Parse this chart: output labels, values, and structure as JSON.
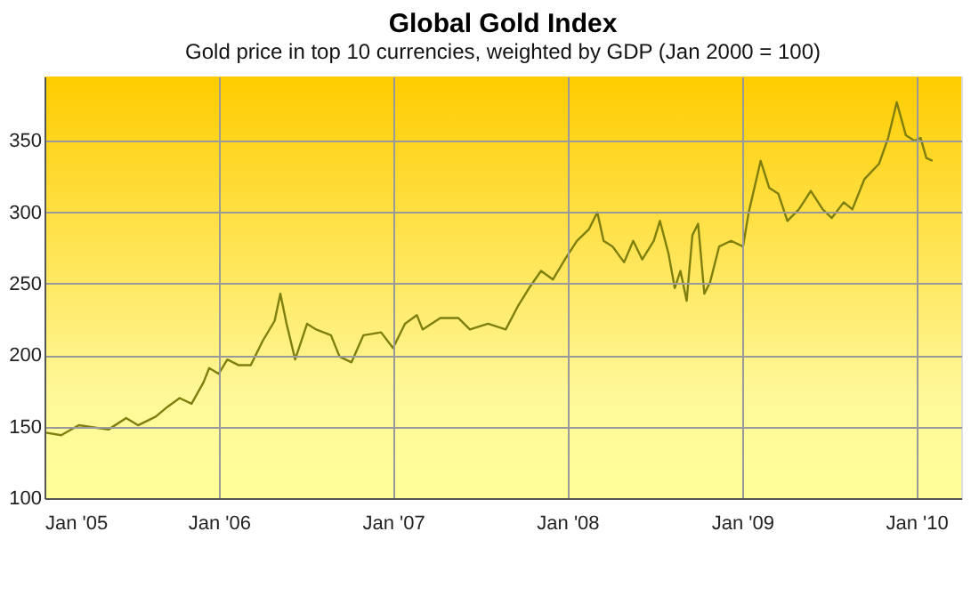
{
  "chart_data": {
    "type": "line",
    "title": "Global Gold Index",
    "subtitle": "Gold price in top 10 currencies, weighted by GDP (Jan 2000 = 100)",
    "xlim": [
      "2005-01-01",
      "2010-04-05"
    ],
    "xticks": [
      {
        "value": "2005-01",
        "label": "Jan '05"
      },
      {
        "value": "2006-01",
        "label": "Jan '06"
      },
      {
        "value": "2007-01",
        "label": "Jan '07"
      },
      {
        "value": "2008-01",
        "label": "Jan '08"
      },
      {
        "value": "2009-01",
        "label": "Jan '09"
      },
      {
        "value": "2010-01",
        "label": "Jan '10"
      }
    ],
    "ylim": [
      100,
      395
    ],
    "yticks": [
      100,
      150,
      200,
      250,
      300,
      350
    ],
    "grid": true,
    "marker": "none",
    "line_style": "solid",
    "series": [
      {
        "color": "#7f7f10",
        "x": [
          "2005-01-01",
          "2005-02-05",
          "2005-03-14",
          "2005-05-15",
          "2005-06-21",
          "2005-07-16",
          "2005-08-22",
          "2005-09-16",
          "2005-10-11",
          "2005-11-05",
          "2005-11-30",
          "2005-12-12",
          "2006-01-01",
          "2006-01-19",
          "2006-02-12",
          "2006-03-09",
          "2006-04-03",
          "2006-04-28",
          "2006-05-10",
          "2006-05-23",
          "2006-06-10",
          "2006-07-05",
          "2006-07-24",
          "2006-08-24",
          "2006-09-11",
          "2006-10-06",
          "2006-10-31",
          "2006-12-07",
          "2007-01-01",
          "2007-01-26",
          "2007-02-20",
          "2007-03-04",
          "2007-04-10",
          "2007-05-18",
          "2007-06-11",
          "2007-07-19",
          "2007-08-25",
          "2007-09-19",
          "2007-10-13",
          "2007-11-07",
          "2007-12-02",
          "2007-12-27",
          "2008-01-21",
          "2008-02-15",
          "2008-03-04",
          "2008-03-17",
          "2008-04-05",
          "2008-04-29",
          "2008-05-18",
          "2008-06-06",
          "2008-06-30",
          "2008-07-13",
          "2008-07-31",
          "2008-08-13",
          "2008-08-25",
          "2008-09-07",
          "2008-09-19",
          "2008-10-01",
          "2008-10-14",
          "2008-10-26",
          "2008-11-14",
          "2008-12-09",
          "2009-01-03",
          "2009-01-15",
          "2009-02-09",
          "2009-02-27",
          "2009-03-18",
          "2009-04-06",
          "2009-04-30",
          "2009-05-25",
          "2009-06-19",
          "2009-07-08",
          "2009-08-02",
          "2009-08-20",
          "2009-09-14",
          "2009-10-15",
          "2009-11-03",
          "2009-11-21",
          "2009-12-10",
          "2009-12-28",
          "2010-01-10",
          "2010-01-22",
          "2010-02-04"
        ],
        "values": [
          146,
          144,
          151,
          148,
          156,
          151,
          157,
          164,
          170,
          166,
          181,
          191,
          187,
          197,
          193,
          193,
          210,
          224,
          243,
          222,
          197,
          222,
          218,
          214,
          199,
          195,
          214,
          216,
          205,
          222,
          228,
          218,
          226,
          226,
          218,
          222,
          218,
          234,
          247,
          259,
          253,
          267,
          280,
          288,
          300,
          280,
          276,
          265,
          280,
          267,
          280,
          294,
          271,
          247,
          259,
          238,
          284,
          292,
          243,
          251,
          276,
          280,
          276,
          300,
          336,
          317,
          313,
          294,
          302,
          315,
          302,
          296,
          307,
          302,
          323,
          334,
          352,
          377,
          354,
          350,
          352,
          338,
          336
        ]
      }
    ]
  }
}
